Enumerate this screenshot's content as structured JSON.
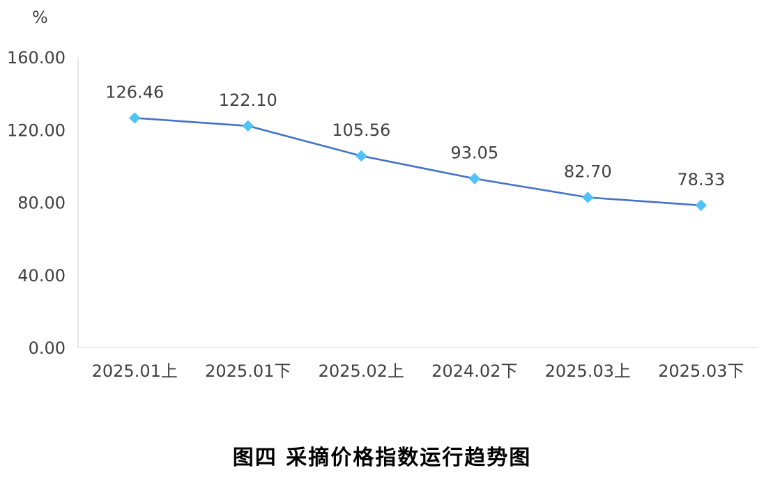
{
  "chart_data": {
    "type": "line",
    "title": "",
    "ylabel": "%",
    "xlabel": "",
    "categories": [
      "2025.01上",
      "2025.01下",
      "2025.02上",
      "2024.02下",
      "2025.03上",
      "2025.03下"
    ],
    "values": [
      126.46,
      122.1,
      105.56,
      93.05,
      82.7,
      78.33
    ],
    "value_labels": [
      "126.46",
      "122.10",
      "105.56",
      "93.05",
      "82.70",
      "78.33"
    ],
    "yticks": [
      "0.00",
      "40.00",
      "80.00",
      "120.00",
      "160.00"
    ],
    "ylim": [
      0,
      160
    ],
    "grid": false,
    "colors": {
      "line": "#4472C4",
      "marker": "#4FC3F7",
      "axis": "#D9D9D9"
    }
  },
  "caption": "图四 采摘价格指数运行趋势图"
}
